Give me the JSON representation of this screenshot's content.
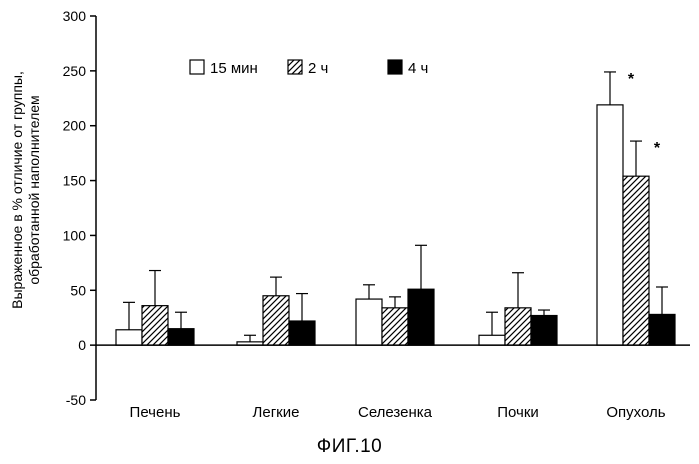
{
  "chart_data": {
    "type": "bar",
    "title": "",
    "caption": "ФИГ.10",
    "ylabel_lines": [
      "Выраженное в % отличие от группы,",
      "обработанной наполнителем"
    ],
    "xlabel": "",
    "ylim": [
      -50,
      300
    ],
    "yticks": [
      -50,
      0,
      50,
      100,
      150,
      200,
      250,
      300
    ],
    "grid": false,
    "legend_position": "top",
    "categories": [
      "Печень",
      "Легкие",
      "Селезенка",
      "Почки",
      "Опухоль"
    ],
    "series": [
      {
        "name": "15 мин",
        "pattern": "white",
        "values": [
          14,
          3,
          42,
          9,
          219
        ],
        "errors": [
          25,
          6,
          13,
          21,
          30
        ],
        "significance": [
          "",
          "",
          "",
          "",
          "*"
        ]
      },
      {
        "name": "2 ч",
        "pattern": "hatched",
        "values": [
          36,
          45,
          34,
          34,
          154
        ],
        "errors": [
          32,
          17,
          10,
          32,
          32
        ],
        "significance": [
          "",
          "",
          "",
          "",
          "*"
        ]
      },
      {
        "name": "4 ч",
        "pattern": "black",
        "values": [
          15,
          22,
          51,
          27,
          28
        ],
        "errors": [
          15,
          25,
          40,
          5,
          25
        ],
        "significance": [
          "",
          "",
          "",
          "",
          ""
        ]
      }
    ]
  }
}
